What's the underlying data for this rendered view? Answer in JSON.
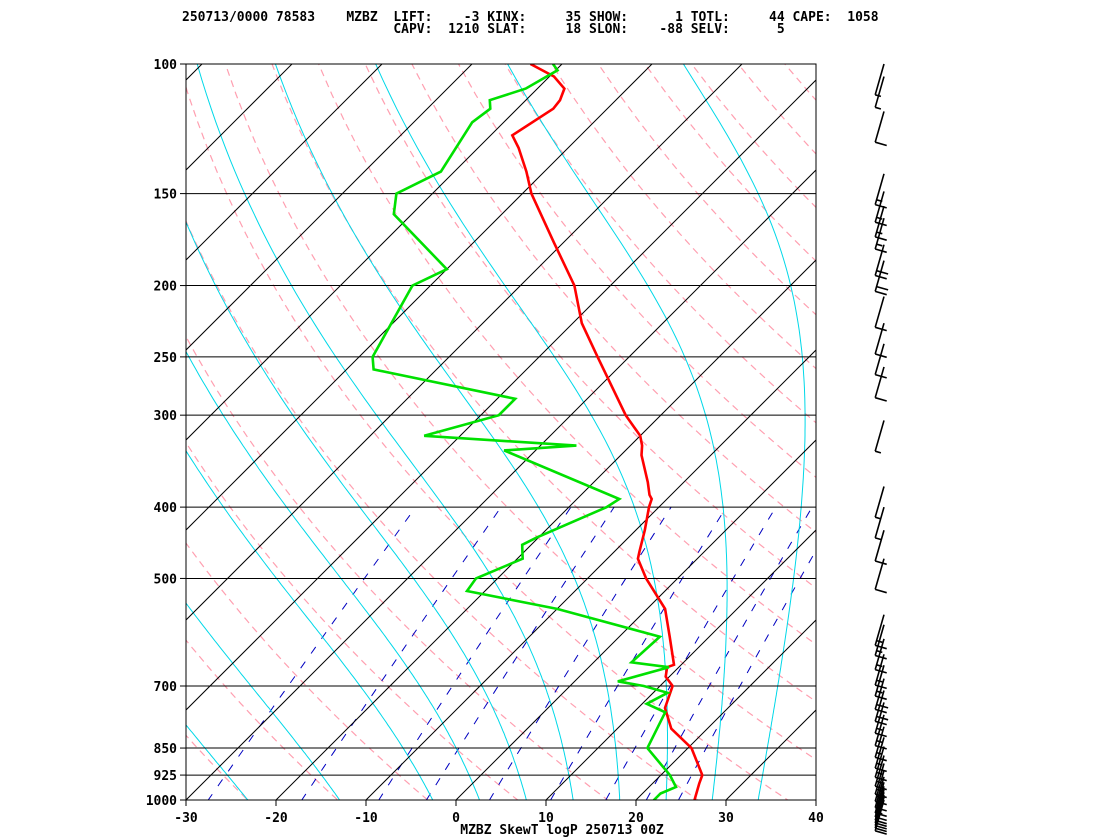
{
  "header": {
    "line1": "250713/0000 78583    MZBZ  LIFT:    -3 KINX:     35 SHOW:      1 TOTL:     44 CAPE:  1058",
    "line2": "                           CAPV:  1210 SLAT:     18 SLON:    -88 SELV:      5"
  },
  "chart_data": {
    "type": "line",
    "title": "MZBZ SkewT logP 250713 00Z",
    "xlabel": "",
    "ylabel": "",
    "x_ticks": [
      -30,
      -20,
      -10,
      0,
      10,
      20,
      30,
      40
    ],
    "xlim": [
      -30,
      40
    ],
    "p_ticks": [
      100,
      150,
      200,
      250,
      300,
      400,
      500,
      700,
      850,
      925,
      1000
    ],
    "plim": [
      100,
      1000
    ],
    "y_scale": "log",
    "grid": true,
    "skew": "45 degrees",
    "colors": {
      "temperature": "#ff0000",
      "dewpoint": "#00e000",
      "dry_adiabats": "#ff9fb0",
      "moist_adiabats": "#00d8e8",
      "mixing_ratio": "#0000c0",
      "isotherms": "#000000",
      "isobars": "#000000"
    },
    "series": [
      {
        "role": "temperature",
        "points": [
          {
            "p": 1013,
            "t": 27.5
          },
          {
            "p": 1000,
            "t": 26.5
          },
          {
            "p": 950,
            "t": 25.2
          },
          {
            "p": 925,
            "t": 24.6
          },
          {
            "p": 850,
            "t": 20.4
          },
          {
            "p": 800,
            "t": 16.0
          },
          {
            "p": 750,
            "t": 13.0
          },
          {
            "p": 700,
            "t": 11.4
          },
          {
            "p": 680,
            "t": 9.6
          },
          {
            "p": 660,
            "t": 8.7
          },
          {
            "p": 655,
            "t": 9.2
          },
          {
            "p": 600,
            "t": 5.6
          },
          {
            "p": 550,
            "t": 2.0
          },
          {
            "p": 500,
            "t": -3.5
          },
          {
            "p": 470,
            "t": -6.6
          },
          {
            "p": 460,
            "t": -7.2
          },
          {
            "p": 430,
            "t": -9.0
          },
          {
            "p": 400,
            "t": -11.1
          },
          {
            "p": 390,
            "t": -11.7
          },
          {
            "p": 385,
            "t": -12.4
          },
          {
            "p": 370,
            "t": -14.0
          },
          {
            "p": 340,
            "t": -17.7
          },
          {
            "p": 330,
            "t": -18.7
          },
          {
            "p": 320,
            "t": -20.0
          },
          {
            "p": 300,
            "t": -23.9
          },
          {
            "p": 250,
            "t": -33.5
          },
          {
            "p": 225,
            "t": -39.0
          },
          {
            "p": 200,
            "t": -44.0
          },
          {
            "p": 175,
            "t": -51.0
          },
          {
            "p": 150,
            "t": -59.0
          },
          {
            "p": 140,
            "t": -62.0
          },
          {
            "p": 130,
            "t": -65.5
          },
          {
            "p": 125,
            "t": -67.6
          },
          {
            "p": 115,
            "t": -66.0
          },
          {
            "p": 112,
            "t": -66.2
          },
          {
            "p": 108,
            "t": -67.0
          },
          {
            "p": 104,
            "t": -69.5
          },
          {
            "p": 100,
            "t": -73.5
          }
        ]
      },
      {
        "role": "dewpoint",
        "points": [
          {
            "p": 1013,
            "t": 24.5
          },
          {
            "p": 1000,
            "t": 22.0
          },
          {
            "p": 980,
            "t": 22.0
          },
          {
            "p": 960,
            "t": 23.0
          },
          {
            "p": 925,
            "t": 21.0
          },
          {
            "p": 850,
            "t": 15.5
          },
          {
            "p": 760,
            "t": 13.5
          },
          {
            "p": 740,
            "t": 10.5
          },
          {
            "p": 715,
            "t": 11.6
          },
          {
            "p": 700,
            "t": 8.2
          },
          {
            "p": 690,
            "t": 4.8
          },
          {
            "p": 660,
            "t": 8.9
          },
          {
            "p": 650,
            "t": 4.2
          },
          {
            "p": 600,
            "t": 4.5
          },
          {
            "p": 550,
            "t": -10.0
          },
          {
            "p": 520,
            "t": -22.0
          },
          {
            "p": 500,
            "t": -22.4
          },
          {
            "p": 470,
            "t": -19.4
          },
          {
            "p": 460,
            "t": -20.2
          },
          {
            "p": 450,
            "t": -21.0
          },
          {
            "p": 440,
            "t": -20.2
          },
          {
            "p": 400,
            "t": -15.8
          },
          {
            "p": 390,
            "t": -15.3
          },
          {
            "p": 335,
            "t": -33.5
          },
          {
            "p": 330,
            "t": -26.0
          },
          {
            "p": 320,
            "t": -44.0
          },
          {
            "p": 300,
            "t": -38.0
          },
          {
            "p": 285,
            "t": -38.0
          },
          {
            "p": 260,
            "t": -57.0
          },
          {
            "p": 250,
            "t": -58.5
          },
          {
            "p": 200,
            "t": -62.0
          },
          {
            "p": 190,
            "t": -60.0
          },
          {
            "p": 160,
            "t": -72.0
          },
          {
            "p": 150,
            "t": -74.0
          },
          {
            "p": 140,
            "t": -71.5
          },
          {
            "p": 120,
            "t": -73.5
          },
          {
            "p": 115,
            "t": -73.0
          },
          {
            "p": 112,
            "t": -74.0
          },
          {
            "p": 108,
            "t": -71.3
          },
          {
            "p": 102,
            "t": -69.8
          },
          {
            "p": 100,
            "t": -71.0
          }
        ]
      }
    ],
    "wind_barbs": [
      {
        "p": 1000,
        "speed_kt": 10
      },
      {
        "p": 992,
        "speed_kt": 10
      },
      {
        "p": 984,
        "speed_kt": 10
      },
      {
        "p": 976,
        "speed_kt": 10
      },
      {
        "p": 968,
        "speed_kt": 10
      },
      {
        "p": 958,
        "speed_kt": 15
      },
      {
        "p": 946,
        "speed_kt": 15
      },
      {
        "p": 930,
        "speed_kt": 15
      },
      {
        "p": 912,
        "speed_kt": 15
      },
      {
        "p": 892,
        "speed_kt": 15
      },
      {
        "p": 870,
        "speed_kt": 15
      },
      {
        "p": 846,
        "speed_kt": 15
      },
      {
        "p": 822,
        "speed_kt": 15
      },
      {
        "p": 795,
        "speed_kt": 15
      },
      {
        "p": 766,
        "speed_kt": 15
      },
      {
        "p": 737,
        "speed_kt": 15
      },
      {
        "p": 710,
        "speed_kt": 20
      },
      {
        "p": 684,
        "speed_kt": 20
      },
      {
        "p": 656,
        "speed_kt": 15
      },
      {
        "p": 634,
        "speed_kt": 15
      },
      {
        "p": 604,
        "speed_kt": 15
      },
      {
        "p": 578,
        "speed_kt": 15
      },
      {
        "p": 560,
        "speed_kt": 15
      },
      {
        "p": 470,
        "speed_kt": 10
      },
      {
        "p": 430,
        "speed_kt": 10
      },
      {
        "p": 400,
        "speed_kt": 5
      },
      {
        "p": 375,
        "speed_kt": 5
      },
      {
        "p": 305,
        "speed_kt": 5
      },
      {
        "p": 258,
        "speed_kt": 10
      },
      {
        "p": 240,
        "speed_kt": 10
      },
      {
        "p": 225,
        "speed_kt": 10
      },
      {
        "p": 207,
        "speed_kt": 10
      },
      {
        "p": 185,
        "speed_kt": 20
      },
      {
        "p": 176,
        "speed_kt": 20
      },
      {
        "p": 162,
        "speed_kt": 15
      },
      {
        "p": 156,
        "speed_kt": 15
      },
      {
        "p": 149,
        "speed_kt": 15
      },
      {
        "p": 141,
        "speed_kt": 15
      },
      {
        "p": 116,
        "speed_kt": 10
      },
      {
        "p": 104,
        "speed_kt": 5
      },
      {
        "p": 100,
        "speed_kt": 5
      }
    ]
  }
}
